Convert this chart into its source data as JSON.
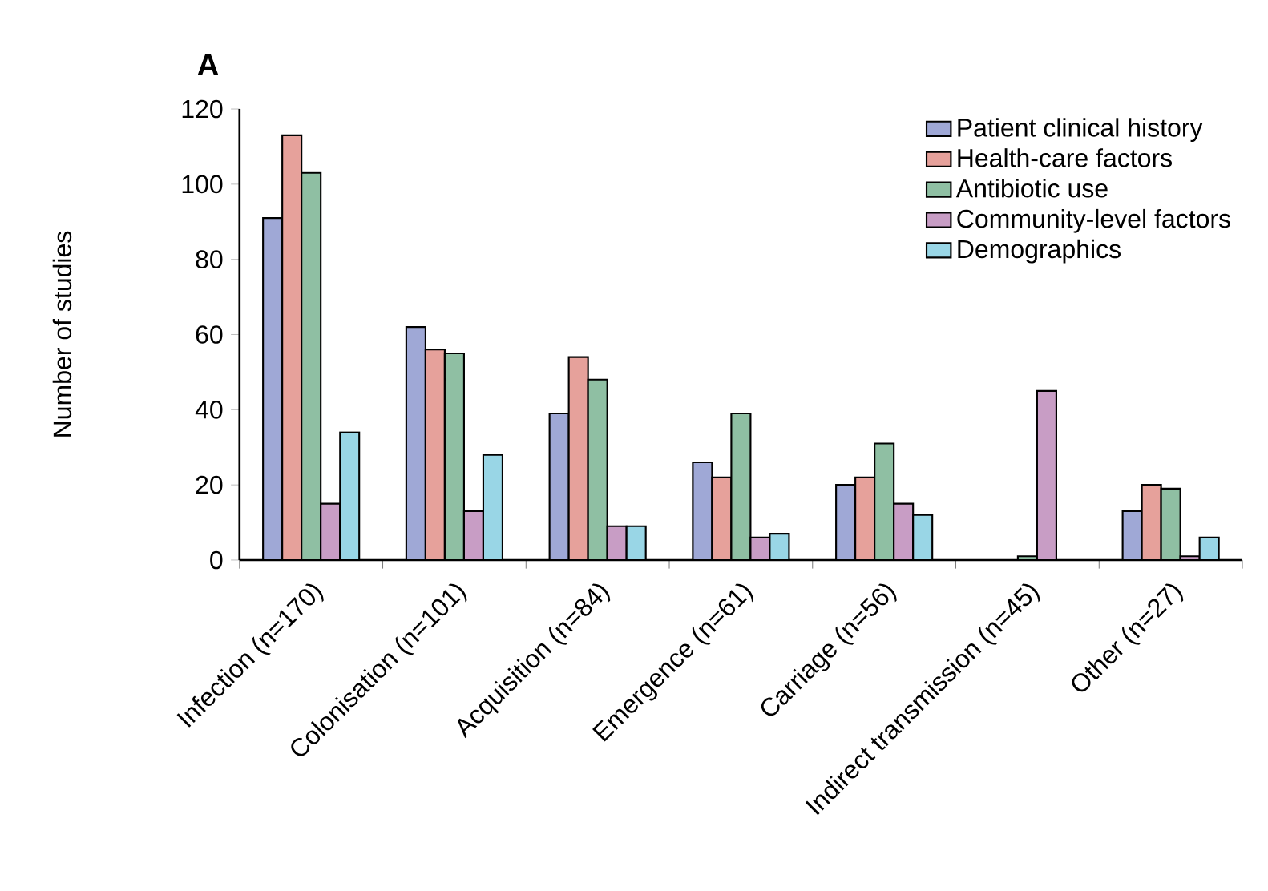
{
  "chart_data": {
    "type": "bar",
    "title": "A",
    "ylabel": "Number of studies",
    "categories": [
      "Infection (n=170)",
      "Colonisation (n=101)",
      "Acquisition (n=84)",
      "Emergence (n=61)",
      "Carriage (n=56)",
      "Indirect transmission (n=45)",
      "Other (n=27)"
    ],
    "series": [
      {
        "name": "Patient clinical history",
        "color": "#9fa8d6",
        "values": [
          91,
          62,
          39,
          26,
          20,
          null,
          13
        ]
      },
      {
        "name": "Health-care factors",
        "color": "#e6a19b",
        "values": [
          113,
          56,
          54,
          22,
          22,
          null,
          20
        ]
      },
      {
        "name": "Antibiotic use",
        "color": "#8fbfa3",
        "values": [
          103,
          55,
          48,
          39,
          31,
          1,
          19
        ]
      },
      {
        "name": "Community-level factors",
        "color": "#c89dc5",
        "values": [
          15,
          13,
          9,
          6,
          15,
          45,
          1
        ]
      },
      {
        "name": "Demographics",
        "color": "#99d6e6",
        "values": [
          34,
          28,
          9,
          7,
          12,
          null,
          6
        ]
      }
    ],
    "ylim": [
      0,
      120
    ],
    "yticks": [
      0,
      20,
      40,
      60,
      80,
      100,
      120
    ],
    "legend": "top right"
  }
}
